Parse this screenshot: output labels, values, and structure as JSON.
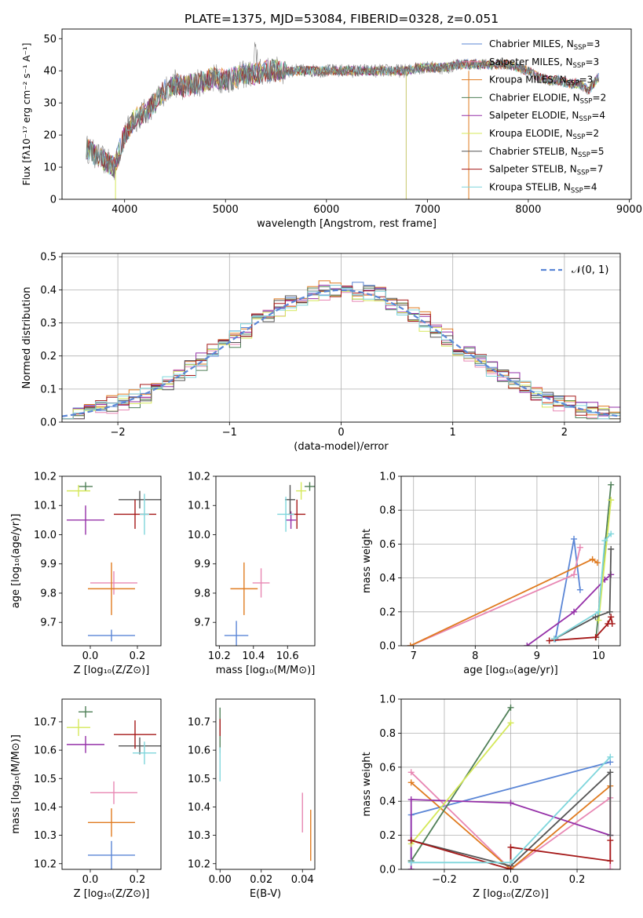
{
  "figure_title": "PLATE=1375, MJD=53084, FIBERID=0328, z=0.051",
  "model_colors": [
    "#5b86d6",
    "#e887b3",
    "#e07b20",
    "#4f7f57",
    "#9530a8",
    "#d5e85a",
    "#555555",
    "#a51818",
    "#7fd6dc"
  ],
  "chart_data": [
    {
      "type": "line",
      "panel": "spectrum",
      "title": "PLATE=1375, MJD=53084, FIBERID=0328, z=0.051",
      "xlabel": "wavelength [Angstrom, rest frame]",
      "ylabel": "Flux [fλ10⁻¹⁷ erg cm⁻² s⁻¹ A⁻¹]",
      "xlim": [
        3380,
        9020
      ],
      "ylim": [
        0,
        53
      ],
      "xticks": [
        "4000",
        "5000",
        "6000",
        "7000",
        "8000",
        "9000"
      ],
      "yticks": [
        "0",
        "10",
        "20",
        "30",
        "40",
        "50"
      ],
      "legend_position": "upper right",
      "observed_series": {
        "x": [
          3620,
          3700,
          3800,
          3900,
          4000,
          4100,
          4200,
          4300,
          4400,
          4500,
          4600,
          4700,
          4800,
          4900,
          5000,
          5100,
          5200,
          5300,
          5400,
          5500,
          5600,
          5700,
          5800,
          5900,
          6000,
          6100,
          6200,
          6300,
          6400,
          6500,
          6600,
          6700,
          6800,
          6900,
          7000,
          7100,
          7200,
          7300,
          7400,
          7500,
          7600,
          7700,
          7800,
          7900,
          8000,
          8100,
          8200,
          8300,
          8400,
          8500,
          8600,
          8700
        ],
        "y": [
          16,
          14,
          12,
          10,
          20,
          25,
          27,
          30,
          34,
          36,
          35,
          36,
          37,
          38,
          37,
          38,
          39,
          39,
          40,
          40,
          40,
          40,
          40,
          40,
          40,
          40,
          40,
          40,
          40,
          40,
          40,
          40,
          40,
          41,
          41,
          41,
          41,
          42,
          42,
          42,
          42,
          42,
          42,
          41,
          40,
          38,
          37,
          37,
          36,
          36,
          34,
          38
        ]
      },
      "series": [
        {
          "name": "Chabrier MILES, N_SSP=3",
          "color": "#5b86d6"
        },
        {
          "name": "Salpeter MILES, N_SSP=3",
          "color": "#e887b3"
        },
        {
          "name": "Kroupa MILES, N_SSP=3",
          "color": "#e07b20"
        },
        {
          "name": "Chabrier ELODIE, N_SSP=2",
          "color": "#4f7f57"
        },
        {
          "name": "Salpeter ELODIE, N_SSP=4",
          "color": "#9530a8"
        },
        {
          "name": "Kroupa ELODIE, N_SSP=2",
          "color": "#d5e85a"
        },
        {
          "name": "Chabrier STELIB, N_SSP=5",
          "color": "#555555"
        },
        {
          "name": "Salpeter STELIB, N_SSP=7",
          "color": "#a51818"
        },
        {
          "name": "Kroupa STELIB, N_SSP=4",
          "color": "#7fd6dc"
        }
      ],
      "legend": [
        {
          "base": "Chabrier MILES, N",
          "sub": "SSP",
          "tail": "=3",
          "color": "#5b86d6"
        },
        {
          "base": "Salpeter MILES, N",
          "sub": "SSP",
          "tail": "=3",
          "color": "#e887b3"
        },
        {
          "base": "Kroupa MILES, N",
          "sub": "SSP",
          "tail": "=3",
          "color": "#e07b20"
        },
        {
          "base": "Chabrier ELODIE, N",
          "sub": "SSP",
          "tail": "=2",
          "color": "#4f7f57"
        },
        {
          "base": "Salpeter ELODIE, N",
          "sub": "SSP",
          "tail": "=4",
          "color": "#9530a8"
        },
        {
          "base": "Kroupa ELODIE, N",
          "sub": "SSP",
          "tail": "=2",
          "color": "#d5e85a"
        },
        {
          "base": "Chabrier STELIB, N",
          "sub": "SSP",
          "tail": "=5",
          "color": "#555555"
        },
        {
          "base": "Salpeter STELIB, N",
          "sub": "SSP",
          "tail": "=7",
          "color": "#a51818"
        },
        {
          "base": "Kroupa STELIB, N",
          "sub": "SSP",
          "tail": "=4",
          "color": "#7fd6dc"
        }
      ]
    },
    {
      "type": "histogram",
      "panel": "residuals",
      "xlabel": "(data-model)/error",
      "ylabel": "Normed distribution",
      "xlim": [
        -2.5,
        2.5
      ],
      "ylim": [
        0,
        0.51
      ],
      "xticks": [
        "−2",
        "−1",
        "0",
        "1",
        "2"
      ],
      "yticks": [
        "0.0",
        "0.1",
        "0.2",
        "0.3",
        "0.4",
        "0.5"
      ],
      "grid": true,
      "legend_position": "upper right",
      "reference": {
        "label": "𝒩(0, 1)",
        "mean": 0,
        "sigma": 1
      },
      "bin_width": 0.1,
      "series_offsets": [
        0.004,
        -0.006,
        0.008,
        -0.004,
        0.006,
        -0.008,
        0.002,
        0.005,
        -0.003
      ]
    },
    {
      "type": "scatter",
      "panel": "age-vs-Z",
      "xlabel": "Z [log₁₀(Z/Z⊙)]",
      "ylabel": "age  [log₁₀(age/yr)]",
      "xlim": [
        -0.12,
        0.3
      ],
      "ylim": [
        9.62,
        10.2
      ],
      "xticks": [
        "0.0",
        "0.2"
      ],
      "yticks": [
        "9.7",
        "9.8",
        "9.9",
        "10.0",
        "10.1",
        "10.2"
      ],
      "points": [
        {
          "x": 0.09,
          "y": 9.655,
          "xerr": 0.1,
          "yerr": 0.02,
          "color": "#5b86d6"
        },
        {
          "x": 0.1,
          "y": 9.835,
          "xerr": 0.1,
          "yerr": 0.04,
          "color": "#e887b3"
        },
        {
          "x": 0.09,
          "y": 9.815,
          "xerr": 0.1,
          "yerr": 0.09,
          "color": "#e07b20"
        },
        {
          "x": -0.02,
          "y": 10.165,
          "xerr": 0.03,
          "yerr": 0.015,
          "color": "#4f7f57"
        },
        {
          "x": -0.02,
          "y": 10.05,
          "xerr": 0.08,
          "yerr": 0.05,
          "color": "#9530a8"
        },
        {
          "x": -0.05,
          "y": 10.15,
          "xerr": 0.05,
          "yerr": 0.02,
          "color": "#d5e85a"
        },
        {
          "x": 0.21,
          "y": 10.12,
          "xerr": 0.09,
          "yerr": 0.03,
          "color": "#555555"
        },
        {
          "x": 0.19,
          "y": 10.07,
          "xerr": 0.09,
          "yerr": 0.05,
          "color": "#a51818"
        },
        {
          "x": 0.23,
          "y": 10.07,
          "xerr": 0.02,
          "yerr": 0.07,
          "color": "#7fd6dc"
        }
      ]
    },
    {
      "type": "scatter",
      "panel": "age-vs-mass",
      "xlabel": "mass [log₁₀(M/M⊙)]",
      "ylabel": "",
      "xlim": [
        10.18,
        10.76
      ],
      "ylim": [
        9.62,
        10.2
      ],
      "xticks": [
        "10.2",
        "10.4",
        "10.6"
      ],
      "yticks": [
        "9.7",
        "9.8",
        "9.9",
        "10.0",
        "10.1",
        "10.2"
      ],
      "points": [
        {
          "x": 10.3,
          "y": 9.655,
          "xerr": 0.07,
          "yerr": 0.05,
          "color": "#5b86d6"
        },
        {
          "x": 10.445,
          "y": 9.835,
          "xerr": 0.05,
          "yerr": 0.05,
          "color": "#e887b3"
        },
        {
          "x": 10.345,
          "y": 9.815,
          "xerr": 0.08,
          "yerr": 0.09,
          "color": "#e07b20"
        },
        {
          "x": 10.73,
          "y": 10.165,
          "xerr": 0.03,
          "yerr": 0.015,
          "color": "#4f7f57"
        },
        {
          "x": 10.62,
          "y": 10.05,
          "xerr": 0.03,
          "yerr": 0.03,
          "color": "#9530a8"
        },
        {
          "x": 10.68,
          "y": 10.15,
          "xerr": 0.03,
          "yerr": 0.03,
          "color": "#d5e85a"
        },
        {
          "x": 10.615,
          "y": 10.12,
          "xerr": 0.03,
          "yerr": 0.05,
          "color": "#555555"
        },
        {
          "x": 10.655,
          "y": 10.07,
          "xerr": 0.05,
          "yerr": 0.05,
          "color": "#a51818"
        },
        {
          "x": 10.59,
          "y": 10.07,
          "xerr": 0.05,
          "yerr": 0.06,
          "color": "#7fd6dc"
        }
      ]
    },
    {
      "type": "line",
      "panel": "weight-vs-age",
      "xlabel": "age  [log₁₀(age/yr)]",
      "ylabel": "mass weight",
      "xlim": [
        6.8,
        10.35
      ],
      "ylim": [
        0,
        1
      ],
      "xticks": [
        "7",
        "8",
        "9",
        "10"
      ],
      "yticks": [
        "0.0",
        "0.2",
        "0.4",
        "0.6",
        "0.8",
        "1.0"
      ],
      "grid": true,
      "series": [
        {
          "color": "#5b86d6",
          "x": [
            9.3,
            9.6,
            9.7
          ],
          "y": [
            0.04,
            0.63,
            0.33
          ]
        },
        {
          "color": "#e887b3",
          "x": [
            6.95,
            9.6,
            9.7
          ],
          "y": [
            0.0,
            0.42,
            0.58
          ]
        },
        {
          "color": "#e07b20",
          "x": [
            6.95,
            9.9,
            9.98
          ],
          "y": [
            0.0,
            0.51,
            0.49
          ]
        },
        {
          "color": "#4f7f57",
          "x": [
            9.96,
            10.2
          ],
          "y": [
            0.05,
            0.95
          ]
        },
        {
          "color": "#9530a8",
          "x": [
            8.84,
            9.6,
            10.1,
            10.2
          ],
          "y": [
            0.0,
            0.2,
            0.39,
            0.42
          ]
        },
        {
          "color": "#d5e85a",
          "x": [
            10.0,
            10.2
          ],
          "y": [
            0.15,
            0.86
          ]
        },
        {
          "color": "#555555",
          "x": [
            9.28,
            9.95,
            10.18,
            10.2
          ],
          "y": [
            0.04,
            0.17,
            0.2,
            0.57
          ]
        },
        {
          "color": "#a51818",
          "x": [
            9.2,
            9.95,
            10.15,
            10.2,
            10.22
          ],
          "y": [
            0.03,
            0.05,
            0.13,
            0.17,
            0.13
          ]
        },
        {
          "color": "#7fd6dc",
          "x": [
            9.28,
            10.0,
            10.1,
            10.2
          ],
          "y": [
            0.04,
            0.2,
            0.62,
            0.66
          ]
        }
      ]
    },
    {
      "type": "scatter",
      "panel": "mass-vs-Z",
      "xlabel": "Z [log₁₀(Z/Z⊙)]",
      "ylabel": "mass [log₁₀(M/M⊙)]",
      "xlim": [
        -0.12,
        0.3
      ],
      "ylim": [
        10.18,
        10.78
      ],
      "xticks": [
        "0.0",
        "0.2"
      ],
      "yticks": [
        "10.2",
        "10.3",
        "10.4",
        "10.5",
        "10.6",
        "10.7"
      ],
      "points": [
        {
          "x": 0.09,
          "y": 10.23,
          "xerr": 0.1,
          "yerr": 0.05,
          "color": "#5b86d6"
        },
        {
          "x": 0.1,
          "y": 10.45,
          "xerr": 0.1,
          "yerr": 0.04,
          "color": "#e887b3"
        },
        {
          "x": 0.09,
          "y": 10.345,
          "xerr": 0.1,
          "yerr": 0.05,
          "color": "#e07b20"
        },
        {
          "x": -0.02,
          "y": 10.735,
          "xerr": 0.03,
          "yerr": 0.02,
          "color": "#4f7f57"
        },
        {
          "x": -0.02,
          "y": 10.62,
          "xerr": 0.08,
          "yerr": 0.03,
          "color": "#9530a8"
        },
        {
          "x": -0.05,
          "y": 10.68,
          "xerr": 0.05,
          "yerr": 0.03,
          "color": "#d5e85a"
        },
        {
          "x": 0.21,
          "y": 10.615,
          "xerr": 0.09,
          "yerr": 0.03,
          "color": "#555555"
        },
        {
          "x": 0.19,
          "y": 10.655,
          "xerr": 0.09,
          "yerr": 0.05,
          "color": "#a51818"
        },
        {
          "x": 0.23,
          "y": 10.59,
          "xerr": 0.05,
          "yerr": 0.04,
          "color": "#7fd6dc"
        }
      ]
    },
    {
      "type": "scatter",
      "panel": "mass-vs-EBV",
      "xlabel": "E(B-V)",
      "ylabel": "",
      "xlim": [
        -0.002,
        0.046
      ],
      "ylim": [
        10.18,
        10.78
      ],
      "xticks": [
        "0.00",
        "0.02",
        "0.04"
      ],
      "yticks": [
        "10.2",
        "10.3",
        "10.4",
        "10.5",
        "10.6",
        "10.7"
      ],
      "points": [
        {
          "x": 0.0,
          "y": 10.67,
          "xerr": 0.0,
          "yerr": 0.08,
          "color": "#4f7f57"
        },
        {
          "x": 0.0,
          "y": 10.68,
          "xerr": 0.0,
          "yerr": 0.03,
          "color": "#a51818"
        },
        {
          "x": 0.0,
          "y": 10.55,
          "xerr": 0.0,
          "yerr": 0.06,
          "color": "#7fd6dc"
        },
        {
          "x": 0.04,
          "y": 10.38,
          "xerr": 0.0,
          "yerr": 0.07,
          "color": "#e887b3"
        },
        {
          "x": 0.044,
          "y": 10.3,
          "xerr": 0.0,
          "yerr": 0.09,
          "color": "#e07b20"
        }
      ]
    },
    {
      "type": "line",
      "panel": "weight-vs-Z",
      "xlabel": "Z [log₁₀(Z/Z⊙)]",
      "ylabel": "mass weight",
      "xlim": [
        -0.33,
        0.33
      ],
      "ylim": [
        0,
        1
      ],
      "xticks": [
        "−0.2",
        "0.0",
        "0.2"
      ],
      "yticks": [
        "0.0",
        "0.2",
        "0.4",
        "0.6",
        "0.8",
        "1.0"
      ],
      "grid": true,
      "series": [
        {
          "color": "#5b86d6",
          "x": [
            -0.3,
            -0.3,
            0.3
          ],
          "y": [
            0.05,
            0.32,
            0.63
          ]
        },
        {
          "color": "#e887b3",
          "x": [
            -0.3,
            0.0,
            0.3,
            0.3
          ],
          "y": [
            0.57,
            0.0,
            0.42,
            0.0
          ]
        },
        {
          "color": "#e07b20",
          "x": [
            -0.3,
            0.0,
            0.3
          ],
          "y": [
            0.51,
            0.0,
            0.49
          ]
        },
        {
          "color": "#4f7f57",
          "x": [
            -0.3,
            0.0
          ],
          "y": [
            0.05,
            0.95
          ]
        },
        {
          "color": "#9530a8",
          "x": [
            -0.3,
            -0.3,
            0.0,
            0.3
          ],
          "y": [
            0.0,
            0.41,
            0.39,
            0.2
          ]
        },
        {
          "color": "#d5e85a",
          "x": [
            -0.3,
            0.0
          ],
          "y": [
            0.15,
            0.86
          ]
        },
        {
          "color": "#555555",
          "x": [
            -0.3,
            0.0,
            0.3,
            0.3
          ],
          "y": [
            0.17,
            0.02,
            0.57,
            0.2
          ]
        },
        {
          "color": "#a51818",
          "x": [
            -0.3,
            0.0,
            0.0,
            0.3,
            0.3
          ],
          "y": [
            0.17,
            0.0,
            0.13,
            0.05,
            0.17
          ]
        },
        {
          "color": "#7fd6dc",
          "x": [
            -0.3,
            0.0,
            0.3
          ],
          "y": [
            0.04,
            0.04,
            0.66
          ]
        }
      ]
    }
  ]
}
